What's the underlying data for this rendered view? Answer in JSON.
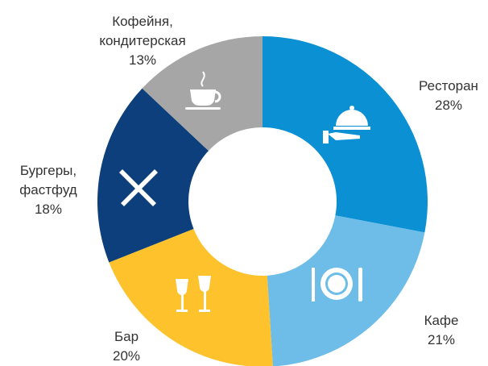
{
  "chart_data": {
    "type": "donut",
    "categories": [
      "Ресторан",
      "Кафе",
      "Бар",
      "Бургеры,\nфастфуд",
      "Кофейня,\nкондитерская"
    ],
    "values": [
      28,
      21,
      20,
      18,
      13
    ],
    "value_labels": [
      "28%",
      "21%",
      "20%",
      "18%",
      "13%"
    ],
    "colors": [
      "#0a90d3",
      "#6dbde8",
      "#fdc22c",
      "#0c3f7b",
      "#a6a6a6"
    ]
  }
}
